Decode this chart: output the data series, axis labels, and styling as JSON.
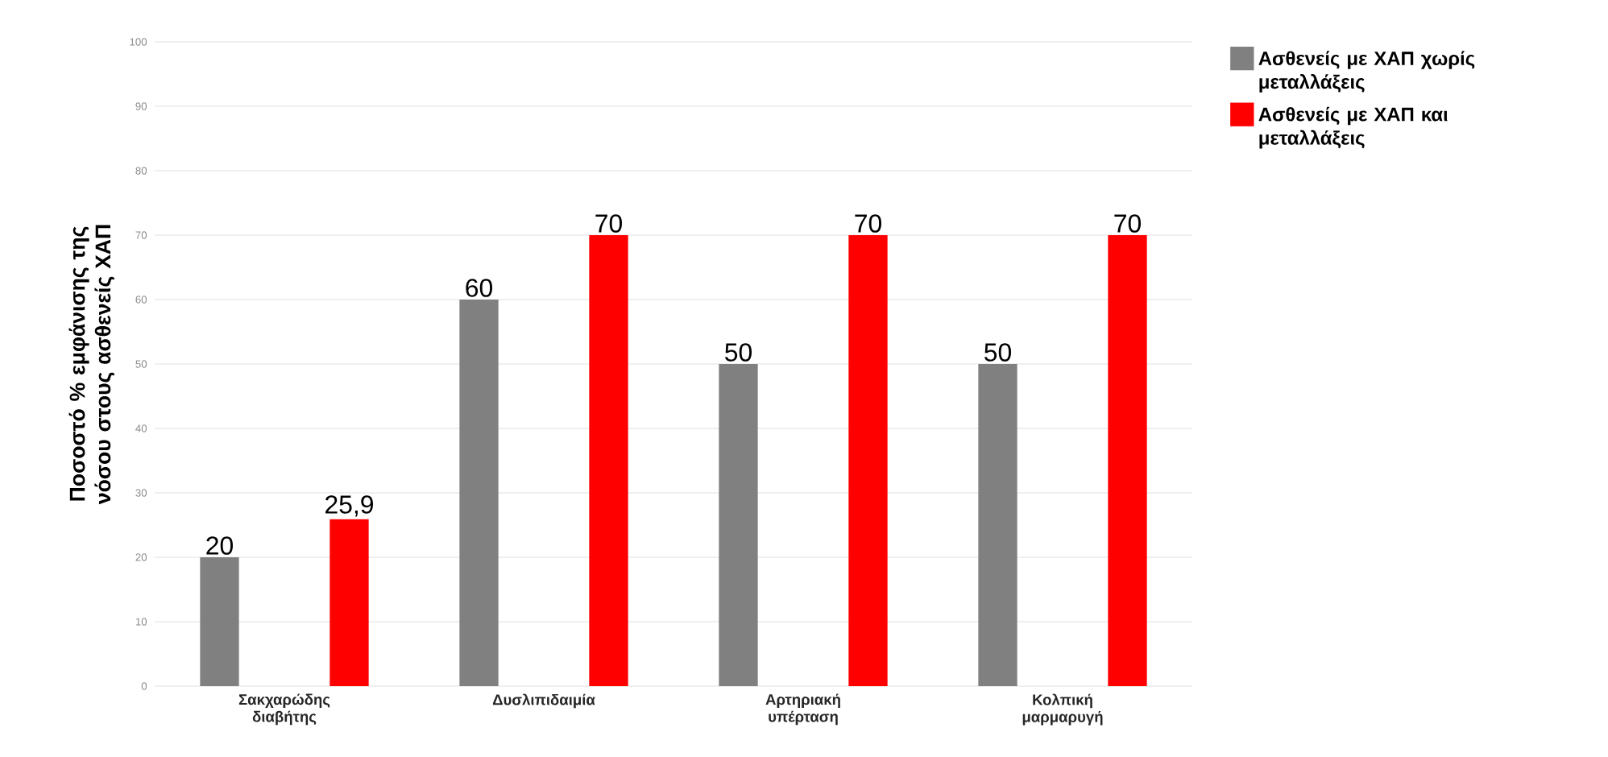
{
  "chart_data": {
    "type": "bar",
    "ylabel": "Ποσοστό % εμφάνισης της νόσου στους ασθενείς ΧΑΠ",
    "categories": [
      "Σακχαρώδης διαβήτης",
      "Δυσλιπιδαιμία",
      "Αρτηριακή υπέρταση",
      "Κολπική μαρμαρυγή"
    ],
    "series": [
      {
        "name": "Ασθενείς με ΧΑΠ χωρίς μεταλλάξεις",
        "color": "#808080",
        "values": [
          20,
          60,
          50,
          50
        ],
        "value_labels": [
          "20",
          "60",
          "50",
          "50"
        ]
      },
      {
        "name": "Ασθενείς με ΧΑΠ και μεταλλάξεις",
        "color": "#ff0000",
        "values": [
          25.9,
          70,
          70,
          70
        ],
        "value_labels": [
          "25,9",
          "70",
          "70",
          "70"
        ]
      }
    ],
    "ylim": [
      0,
      100
    ],
    "yticks": [
      0,
      10,
      20,
      30,
      40,
      50,
      60,
      70,
      80,
      90,
      100
    ],
    "grid": "y",
    "legend": "right"
  }
}
